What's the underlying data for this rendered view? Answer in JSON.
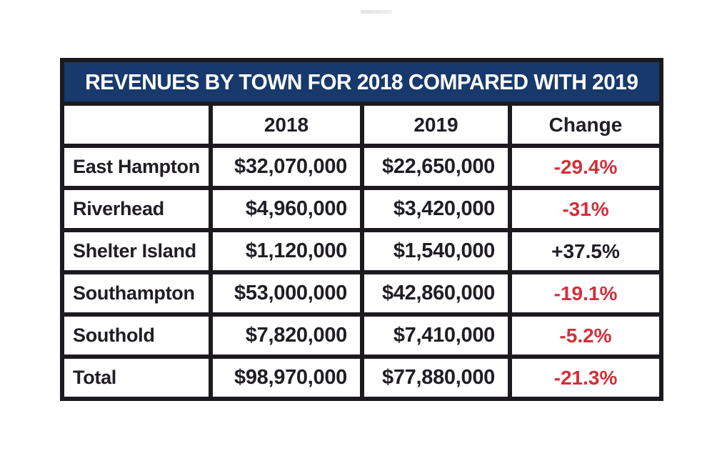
{
  "chart_data": {
    "type": "table",
    "title": "REVENUES BY TOWN FOR 2018 COMPARED WITH 2019",
    "columns": [
      "",
      "2018",
      "2019",
      "Change"
    ],
    "rows": [
      {
        "town": "East Hampton",
        "rev_2018": 32070000,
        "rev_2019": 22650000,
        "change_pct": -29.4
      },
      {
        "town": "Riverhead",
        "rev_2018": 4960000,
        "rev_2019": 3420000,
        "change_pct": -31
      },
      {
        "town": "Shelter Island",
        "rev_2018": 1120000,
        "rev_2019": 1540000,
        "change_pct": 37.5
      },
      {
        "town": "Southampton",
        "rev_2018": 53000000,
        "rev_2019": 42860000,
        "change_pct": -19.1
      },
      {
        "town": "Southold",
        "rev_2018": 7820000,
        "rev_2019": 7410000,
        "change_pct": -5.2
      },
      {
        "town": "Total",
        "rev_2018": 98970000,
        "rev_2019": 77880000,
        "change_pct": -21.3
      }
    ]
  },
  "table": {
    "title": "REVENUES BY TOWN FOR 2018 COMPARED WITH 2019",
    "columns": [
      "",
      "2018",
      "2019",
      "Change"
    ],
    "rows": [
      {
        "town": "East Hampton",
        "y2018": "$32,070,000",
        "y2019": "$22,650,000",
        "change": "-29.4%",
        "negative": true
      },
      {
        "town": "Riverhead",
        "y2018": "$4,960,000",
        "y2019": "$3,420,000",
        "change": "-31%",
        "negative": true
      },
      {
        "town": "Shelter Island",
        "y2018": "$1,120,000",
        "y2019": "$1,540,000",
        "change": "+37.5%",
        "negative": false
      },
      {
        "town": "Southampton",
        "y2018": "$53,000,000",
        "y2019": "$42,860,000",
        "change": "-19.1%",
        "negative": true
      },
      {
        "town": "Southold",
        "y2018": "$7,820,000",
        "y2019": "$7,410,000",
        "change": "-5.2%",
        "negative": true
      },
      {
        "town": "Total",
        "y2018": "$98,970,000",
        "y2019": "$77,880,000",
        "change": "-21.3%",
        "negative": true
      }
    ],
    "colors": {
      "title_bg": "#17396b",
      "title_text": "#ffffff",
      "grid_border": "#1d1a1f",
      "cell_bg": "#ffffff",
      "text_dark": "#201d24",
      "negative_red": "#d2303a"
    }
  }
}
